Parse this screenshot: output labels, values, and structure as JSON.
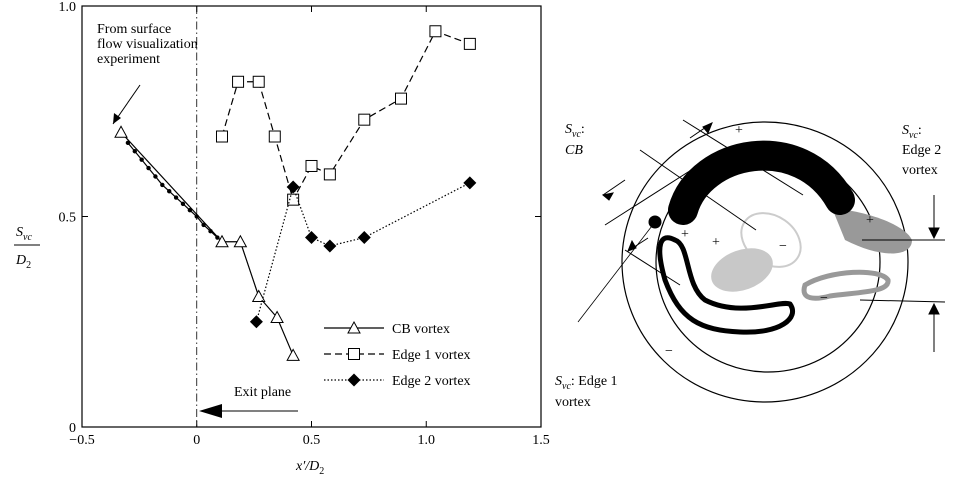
{
  "chart_data": {
    "type": "line",
    "x_label": {
      "main": "x′/D",
      "sub": "2"
    },
    "y_label": {
      "num_main": "S",
      "num_sub": "vc",
      "den_main": "D",
      "den_sub": "2"
    },
    "xlim": [
      -0.5,
      1.5
    ],
    "ylim": [
      0,
      1
    ],
    "xticks": [
      {
        "value": -0.5,
        "label": "−0.5"
      },
      0,
      0.5,
      {
        "value": 1,
        "label": "1.0"
      },
      1.5
    ],
    "yticks": [
      0,
      0.5,
      {
        "value": 1,
        "label": "1.0"
      }
    ],
    "legend": "lower right",
    "series": [
      {
        "name": "CB vortex",
        "color": "#000000",
        "marker": "triangle",
        "dash": "solid",
        "x": [
          -0.33,
          0.11,
          0.19,
          0.27,
          0.35,
          0.42
        ],
        "values": [
          0.7,
          0.44,
          0.44,
          0.31,
          0.26,
          0.17
        ]
      },
      {
        "color": "#000000",
        "marker": "dot",
        "dash": "solid",
        "x": [
          -0.3,
          -0.27,
          -0.24,
          -0.21,
          -0.18,
          -0.15,
          -0.12,
          -0.09,
          -0.06,
          -0.03,
          0.0,
          0.03,
          0.06,
          0.09
        ],
        "values": [
          0.675,
          0.655,
          0.635,
          0.615,
          0.595,
          0.575,
          0.56,
          0.545,
          0.53,
          0.515,
          0.5,
          0.48,
          0.465,
          0.45
        ]
      },
      {
        "name": "Edge 1 vortex",
        "color": "#000000",
        "marker": "square",
        "dash": "dashed",
        "x": [
          0.11,
          0.18,
          0.27,
          0.34,
          0.42,
          0.5,
          0.58,
          0.73,
          0.89,
          1.04,
          1.19
        ],
        "values": [
          0.69,
          0.82,
          0.82,
          0.69,
          0.54,
          0.62,
          0.6,
          0.73,
          0.78,
          0.94,
          0.91
        ]
      },
      {
        "name": "Edge 2 vortex",
        "color": "#000000",
        "marker": "diamond",
        "dash": "dotted",
        "x": [
          0.26,
          0.42,
          0.5,
          0.58,
          0.73,
          1.19
        ],
        "values": [
          0.25,
          0.57,
          0.45,
          0.43,
          0.45,
          0.58
        ]
      }
    ],
    "annotations": {
      "source": [
        "From surface",
        "flow visualization",
        "experiment"
      ],
      "exit": "Exit plane"
    }
  },
  "diagram": {
    "cb": {
      "symbol": "S",
      "subscript": "vc",
      "text": ":",
      "line2": "CB"
    },
    "edge1": {
      "symbol": "S",
      "subscript": "vc",
      "text": ": Edge 1",
      "line2": "vortex"
    },
    "edge2": {
      "symbol": "S",
      "subscript": "vc",
      "text": ":",
      "line2": "Edge 2",
      "line3": "vortex"
    },
    "signs": [
      "+",
      "+",
      "−",
      "+",
      "+",
      "−",
      "−"
    ]
  }
}
